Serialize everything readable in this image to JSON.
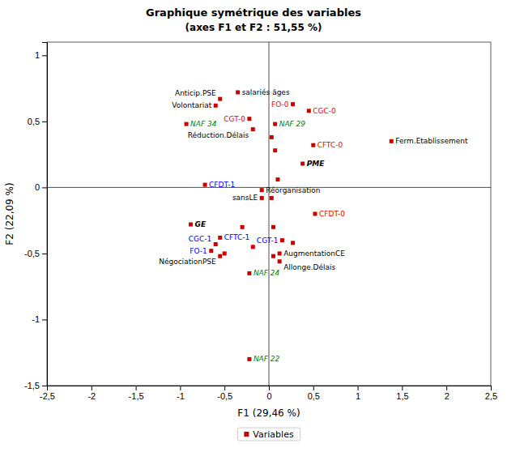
{
  "chart_data": {
    "type": "scatter",
    "title": "Graphique symétrique des variables",
    "subtitle": "(axes F1 et F2 : 51,55 %)",
    "xlabel": "F1 (29,46 %)",
    "ylabel": "F2 (22,09 %)",
    "xlim": [
      -2.5,
      2.5
    ],
    "ylim": [
      -1.5,
      1.1
    ],
    "xticks": [
      {
        "value": -2.5,
        "label": "-2,5"
      },
      -2,
      {
        "value": -1.5,
        "label": "-1,5"
      },
      -1,
      {
        "value": -0.5,
        "label": "-0,5"
      },
      0,
      {
        "value": 0.5,
        "label": "0,5"
      },
      1,
      {
        "value": 1.5,
        "label": "1,5"
      },
      2,
      {
        "value": 2.5,
        "label": "2,5"
      }
    ],
    "yticks": [
      {
        "value": -1.5,
        "label": "-1,5"
      },
      -1,
      {
        "value": -0.5,
        "label": "-0,5"
      },
      0,
      {
        "value": 0.5,
        "label": "0,5"
      },
      1
    ],
    "grid": false,
    "legend": "bottom",
    "series": [
      {
        "name": "Variables",
        "color": "#cc0000",
        "marker": "square",
        "x": [
          -0.35,
          -0.55,
          -0.6,
          -0.18,
          -0.08,
          -0.08,
          -0.55,
          0.12,
          0.12,
          1.38,
          0.38,
          -0.88,
          0.27,
          0.45,
          -0.22,
          0.5,
          0.52,
          -0.72,
          -0.55,
          -0.6,
          -0.65,
          0.15,
          -0.93,
          0.07,
          -0.22,
          -0.22,
          0.03,
          0.07,
          0.1,
          0.03,
          0.05,
          -0.3,
          -0.18,
          0.05,
          0.27,
          -0.5
        ],
        "values": [
          0.72,
          0.67,
          0.62,
          0.44,
          -0.02,
          -0.08,
          -0.52,
          -0.5,
          -0.56,
          0.35,
          0.18,
          -0.28,
          0.63,
          0.58,
          0.52,
          0.32,
          -0.2,
          0.02,
          -0.38,
          -0.43,
          -0.48,
          -0.4,
          0.48,
          0.48,
          -0.65,
          -1.3,
          0.38,
          0.28,
          0.06,
          -0.08,
          -0.3,
          -0.3,
          -0.45,
          -0.52,
          -0.42,
          -0.5
        ],
        "labels": [
          "salariés âges",
          "Anticip.PSE",
          "Volontariat",
          "Réduction.Délais",
          "Réorganisation",
          "sansLE",
          "NégociationPSE",
          "AugmentationCE",
          "Allonge.Délais",
          "Ferm.Etablissement",
          "PME",
          "GE",
          "FO-0",
          "CGC-0",
          "CGT-0",
          "CFTC-0",
          "CFDT-0",
          "CFDT-1",
          "CFTC-1",
          "CGC-1",
          "FO-1",
          "CGT-1",
          "NAF 34",
          "NAF 29",
          "NAF 24",
          "NAF 22",
          null,
          null,
          null,
          null,
          null,
          null,
          null,
          null,
          null,
          null
        ],
        "label_colors": [
          "black",
          "black",
          "black",
          "black",
          "black",
          "black",
          "black",
          "black",
          "black",
          "black",
          "black",
          "black",
          "red",
          "red",
          "red",
          "red",
          "red",
          "blue",
          "blue",
          "blue",
          "blue",
          "blue",
          "green",
          "green",
          "green",
          "green",
          null,
          null,
          null,
          null,
          null,
          null,
          null,
          null,
          null,
          null
        ],
        "label_styles": [
          "normal",
          "normal",
          "normal",
          "normal",
          "normal",
          "normal",
          "normal",
          "normal",
          "normal",
          "normal",
          "bold_italic",
          "bold_italic",
          "normal",
          "normal",
          "normal",
          "normal",
          "normal",
          "normal",
          "normal",
          "normal",
          "normal",
          "normal",
          "italic",
          "italic",
          "italic",
          "italic",
          null,
          null,
          null,
          null,
          null,
          null,
          null,
          null,
          null,
          null
        ]
      }
    ]
  }
}
